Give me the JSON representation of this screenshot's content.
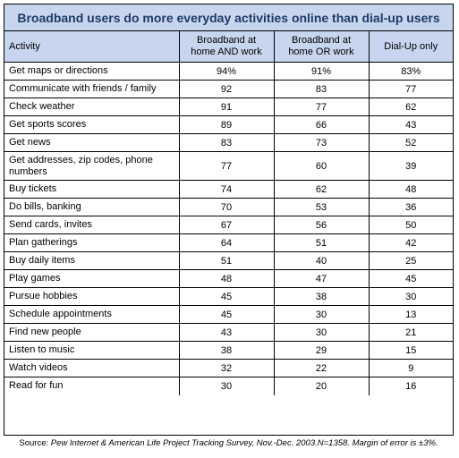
{
  "title": "Broadband users do more everyday activities online than dial-up users",
  "headers": {
    "activity": "Activity",
    "col1": "Broadband at home AND work",
    "col2": "Broadband  at home OR work",
    "col3": "Dial-Up only"
  },
  "rows": [
    {
      "activity": "Get maps or directions",
      "v1": "94%",
      "v2": "91%",
      "v3": "83%"
    },
    {
      "activity": "Communicate with friends / family",
      "v1": "92",
      "v2": "83",
      "v3": "77"
    },
    {
      "activity": "Check weather",
      "v1": "91",
      "v2": "77",
      "v3": "62"
    },
    {
      "activity": "Get sports scores",
      "v1": "89",
      "v2": "66",
      "v3": "43"
    },
    {
      "activity": "Get news",
      "v1": "83",
      "v2": "73",
      "v3": "52"
    },
    {
      "activity": "Get addresses, zip codes, phone numbers",
      "v1": "77",
      "v2": "60",
      "v3": "39"
    },
    {
      "activity": "Buy tickets",
      "v1": "74",
      "v2": "62",
      "v3": "48"
    },
    {
      "activity": "Do bills, banking",
      "v1": "70",
      "v2": "53",
      "v3": "36"
    },
    {
      "activity": "Send cards, invites",
      "v1": "67",
      "v2": "56",
      "v3": "50"
    },
    {
      "activity": "Plan gatherings",
      "v1": "64",
      "v2": "51",
      "v3": "42"
    },
    {
      "activity": "Buy daily items",
      "v1": "51",
      "v2": "40",
      "v3": "25"
    },
    {
      "activity": "Play games",
      "v1": "48",
      "v2": "47",
      "v3": "45"
    },
    {
      "activity": "Pursue hobbies",
      "v1": "45",
      "v2": "38",
      "v3": "30"
    },
    {
      "activity": "Schedule appointments",
      "v1": "45",
      "v2": "30",
      "v3": "13"
    },
    {
      "activity": "Find new people",
      "v1": "43",
      "v2": "30",
      "v3": "21"
    },
    {
      "activity": "Listen to music",
      "v1": "38",
      "v2": "29",
      "v3": "15"
    },
    {
      "activity": "Watch videos",
      "v1": "32",
      "v2": "22",
      "v3": "9"
    },
    {
      "activity": "Read for fun",
      "v1": "30",
      "v2": "20",
      "v3": "16"
    }
  ],
  "source": {
    "label": "Source:",
    "text": "Pew Internet & American Life Project Tracking Survey, Nov.-Dec. 2003.N=1358.  Margin of error is ±3%."
  },
  "colors": {
    "header_background": "#c7d5ee",
    "title_text": "#1f3a66"
  }
}
